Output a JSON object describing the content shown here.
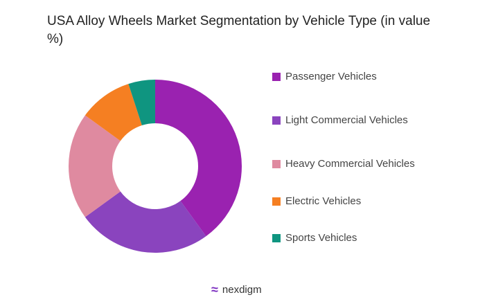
{
  "chart_data": {
    "type": "pie",
    "donut": true,
    "title": "USA Alloy Wheels Market Segmentation by Vehicle Type (in value %)",
    "legend_position": "right",
    "series": [
      {
        "name": "Passenger Vehicles",
        "value": 40,
        "color": "#9a22b0"
      },
      {
        "name": "Light Commercial Vehicles",
        "value": 25,
        "color": "#8a44be"
      },
      {
        "name": "Heavy Commercial Vehicles",
        "value": 20,
        "color": "#df8aa0"
      },
      {
        "name": "Electric Vehicles",
        "value": 10,
        "color": "#f57f22"
      },
      {
        "name": "Sports Vehicles",
        "value": 5,
        "color": "#0f9580"
      }
    ]
  },
  "brand": {
    "name": "nexdigm"
  }
}
